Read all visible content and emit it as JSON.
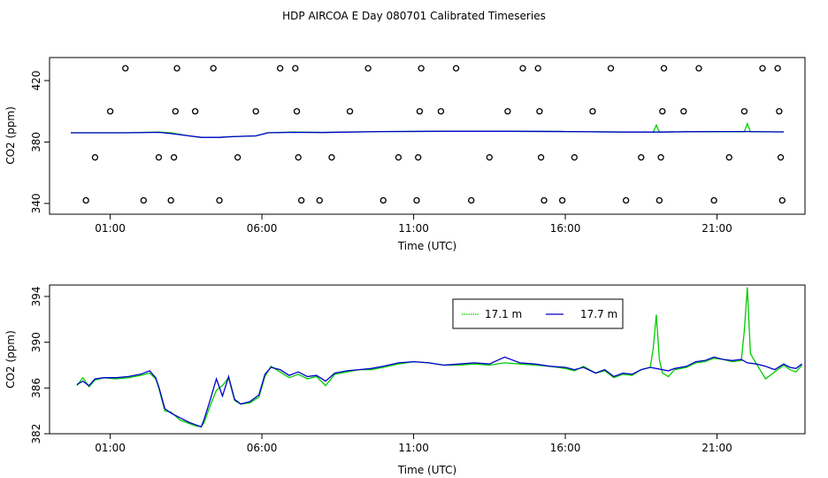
{
  "title": "HDP AIRCOA E  Day 080701  Calibrated Timeseries",
  "colors": {
    "green": "#00cc00",
    "blue": "#0000cc",
    "axis": "#000000"
  },
  "chart_data": [
    {
      "type": "scatter",
      "xlabel": "Time (UTC)",
      "ylabel": "CO2 (ppm)",
      "xlim": [
        -1.0,
        23.9
      ],
      "ylim": [
        333,
        435
      ],
      "x_ticks": [
        1,
        6,
        11,
        16,
        21
      ],
      "x_tick_labels": [
        "01:00",
        "06:00",
        "11:00",
        "16:00",
        "21:00"
      ],
      "y_ticks": [
        340,
        380,
        420
      ],
      "y_tick_labels": [
        "340",
        "380",
        "420"
      ],
      "points": [
        {
          "x": 0.2,
          "y": 342
        },
        {
          "x": 0.5,
          "y": 370
        },
        {
          "x": 1.0,
          "y": 400
        },
        {
          "x": 1.5,
          "y": 428
        },
        {
          "x": 2.1,
          "y": 342
        },
        {
          "x": 2.6,
          "y": 370
        },
        {
          "x": 3.0,
          "y": 342
        },
        {
          "x": 3.1,
          "y": 370
        },
        {
          "x": 3.15,
          "y": 400
        },
        {
          "x": 3.2,
          "y": 428
        },
        {
          "x": 3.8,
          "y": 400
        },
        {
          "x": 4.4,
          "y": 428
        },
        {
          "x": 4.6,
          "y": 342
        },
        {
          "x": 5.2,
          "y": 370
        },
        {
          "x": 5.8,
          "y": 400
        },
        {
          "x": 6.6,
          "y": 428
        },
        {
          "x": 7.1,
          "y": 428
        },
        {
          "x": 7.15,
          "y": 400
        },
        {
          "x": 7.2,
          "y": 370
        },
        {
          "x": 7.3,
          "y": 342
        },
        {
          "x": 7.9,
          "y": 342
        },
        {
          "x": 8.3,
          "y": 370
        },
        {
          "x": 8.9,
          "y": 400
        },
        {
          "x": 9.5,
          "y": 428
        },
        {
          "x": 10.0,
          "y": 342
        },
        {
          "x": 10.5,
          "y": 370
        },
        {
          "x": 11.1,
          "y": 342
        },
        {
          "x": 11.15,
          "y": 370
        },
        {
          "x": 11.2,
          "y": 400
        },
        {
          "x": 11.25,
          "y": 428
        },
        {
          "x": 11.9,
          "y": 400
        },
        {
          "x": 12.4,
          "y": 428
        },
        {
          "x": 12.9,
          "y": 342
        },
        {
          "x": 13.5,
          "y": 370
        },
        {
          "x": 14.1,
          "y": 400
        },
        {
          "x": 14.6,
          "y": 428
        },
        {
          "x": 15.1,
          "y": 428
        },
        {
          "x": 15.15,
          "y": 400
        },
        {
          "x": 15.2,
          "y": 370
        },
        {
          "x": 15.3,
          "y": 342
        },
        {
          "x": 15.9,
          "y": 342
        },
        {
          "x": 16.3,
          "y": 370
        },
        {
          "x": 16.9,
          "y": 400
        },
        {
          "x": 17.5,
          "y": 428
        },
        {
          "x": 18.0,
          "y": 342
        },
        {
          "x": 18.5,
          "y": 370
        },
        {
          "x": 19.1,
          "y": 342
        },
        {
          "x": 19.15,
          "y": 370
        },
        {
          "x": 19.2,
          "y": 400
        },
        {
          "x": 19.25,
          "y": 428
        },
        {
          "x": 19.9,
          "y": 400
        },
        {
          "x": 20.4,
          "y": 428
        },
        {
          "x": 20.9,
          "y": 342
        },
        {
          "x": 21.4,
          "y": 370
        },
        {
          "x": 21.9,
          "y": 400
        },
        {
          "x": 22.5,
          "y": 428
        },
        {
          "x": 23.0,
          "y": 428
        },
        {
          "x": 23.05,
          "y": 400
        },
        {
          "x": 23.1,
          "y": 370
        },
        {
          "x": 23.15,
          "y": 342
        }
      ],
      "series": [
        {
          "name": "17.1 m",
          "color": "#00cc00",
          "x": [
            -0.3,
            0.5,
            1.5,
            2.6,
            3.0,
            3.6,
            4.0,
            4.6,
            5.0,
            5.8,
            6.2,
            7.0,
            8.0,
            10.0,
            12.0,
            14.0,
            16.0,
            18.0,
            18.9,
            19.0,
            19.1,
            20.0,
            21.0,
            21.9,
            22.0,
            22.1,
            23.0,
            23.2
          ],
          "y": [
            386,
            386,
            386,
            386.5,
            386,
            384,
            383,
            383,
            383.5,
            384,
            386,
            386.5,
            386.3,
            386.8,
            387,
            387,
            386.8,
            386.5,
            386.5,
            391,
            386.5,
            386.7,
            386.7,
            386.7,
            392,
            386.7,
            386.6,
            386.6
          ]
        },
        {
          "name": "17.7 m",
          "color": "#0000cc",
          "x": [
            -0.3,
            0.5,
            1.5,
            2.6,
            3.0,
            3.6,
            4.0,
            4.6,
            5.0,
            5.8,
            6.2,
            7.0,
            8.0,
            10.0,
            12.0,
            14.0,
            16.0,
            18.0,
            19.0,
            20.0,
            21.0,
            22.0,
            23.0,
            23.2
          ],
          "y": [
            386,
            386,
            386,
            386.3,
            385.5,
            384,
            383,
            383,
            383.5,
            384,
            386,
            386.3,
            386.2,
            386.8,
            387,
            387,
            386.8,
            386.5,
            386.5,
            386.7,
            386.8,
            386.8,
            386.6,
            386.6
          ]
        }
      ]
    },
    {
      "type": "line",
      "xlabel": "Time (UTC)",
      "ylabel": "CO2 (ppm)",
      "xlim": [
        -1.0,
        23.9
      ],
      "ylim": [
        382,
        395
      ],
      "x_ticks": [
        1,
        6,
        11,
        16,
        21
      ],
      "x_tick_labels": [
        "01:00",
        "06:00",
        "11:00",
        "16:00",
        "21:00"
      ],
      "y_ticks": [
        382,
        386,
        390,
        394
      ],
      "y_tick_labels": [
        "382",
        "386",
        "390",
        "394"
      ],
      "legend": "top-center",
      "series": [
        {
          "name": "17.1 m",
          "color": "#00cc00",
          "x": [
            -0.1,
            0.1,
            0.3,
            0.5,
            0.8,
            1.2,
            1.6,
            2.0,
            2.3,
            2.5,
            2.6,
            2.8,
            3.0,
            3.3,
            3.6,
            3.8,
            4.0,
            4.1,
            4.3,
            4.5,
            4.7,
            4.9,
            5.1,
            5.3,
            5.6,
            5.9,
            6.1,
            6.3,
            6.6,
            6.9,
            7.2,
            7.5,
            7.8,
            8.1,
            8.4,
            8.8,
            9.2,
            9.6,
            10.0,
            10.5,
            11.0,
            11.5,
            12.0,
            12.5,
            13.0,
            13.5,
            14.0,
            14.5,
            15.0,
            15.5,
            16.0,
            16.3,
            16.6,
            17.0,
            17.3,
            17.6,
            17.9,
            18.2,
            18.5,
            18.8,
            18.9,
            19.0,
            19.1,
            19.2,
            19.4,
            19.6,
            19.8,
            20.0,
            20.3,
            20.6,
            20.9,
            21.2,
            21.5,
            21.8,
            21.9,
            22.0,
            22.1,
            22.3,
            22.6,
            22.9,
            23.2,
            23.4,
            23.6,
            23.8
          ],
          "y": [
            386.2,
            386.9,
            386.1,
            386.7,
            386.9,
            386.8,
            386.9,
            387.1,
            387.3,
            386.8,
            386.0,
            384.0,
            383.9,
            383.2,
            382.9,
            382.7,
            382.6,
            383.0,
            384.5,
            385.8,
            386.2,
            386.9,
            384.9,
            384.6,
            384.7,
            385.2,
            387.0,
            387.9,
            387.4,
            386.9,
            387.2,
            386.8,
            387.0,
            386.2,
            387.2,
            387.4,
            387.6,
            387.6,
            387.8,
            388.1,
            388.3,
            388.2,
            388.0,
            388.0,
            388.1,
            388.0,
            388.2,
            388.1,
            388.0,
            387.9,
            387.7,
            387.5,
            387.9,
            387.3,
            387.5,
            386.9,
            387.2,
            387.1,
            387.6,
            387.8,
            389.5,
            392.4,
            388.5,
            387.3,
            387.0,
            387.6,
            387.7,
            387.8,
            388.2,
            388.3,
            388.6,
            388.5,
            388.3,
            388.4,
            391.0,
            394.8,
            389.0,
            388.1,
            386.8,
            387.4,
            388.0,
            387.6,
            387.4,
            388.0
          ]
        },
        {
          "name": "17.7 m",
          "color": "#0000cc",
          "x": [
            -0.1,
            0.1,
            0.3,
            0.5,
            0.8,
            1.2,
            1.6,
            2.0,
            2.3,
            2.5,
            2.6,
            2.8,
            3.0,
            3.3,
            3.6,
            3.8,
            4.0,
            4.1,
            4.3,
            4.5,
            4.7,
            4.9,
            5.1,
            5.3,
            5.6,
            5.9,
            6.1,
            6.3,
            6.6,
            6.9,
            7.2,
            7.5,
            7.8,
            8.1,
            8.4,
            8.8,
            9.2,
            9.6,
            10.0,
            10.5,
            11.0,
            11.5,
            12.0,
            12.5,
            13.0,
            13.5,
            14.0,
            14.5,
            15.0,
            15.5,
            16.0,
            16.3,
            16.6,
            17.0,
            17.3,
            17.6,
            17.9,
            18.2,
            18.5,
            18.8,
            19.0,
            19.2,
            19.4,
            19.6,
            19.8,
            20.0,
            20.3,
            20.6,
            20.9,
            21.2,
            21.5,
            21.8,
            22.0,
            22.3,
            22.6,
            22.9,
            23.2,
            23.4,
            23.6,
            23.8
          ],
          "y": [
            386.3,
            386.6,
            386.2,
            386.8,
            386.9,
            386.9,
            387.0,
            387.2,
            387.5,
            386.9,
            386.1,
            384.2,
            383.8,
            383.4,
            383.0,
            382.8,
            382.6,
            383.3,
            385.0,
            386.8,
            385.3,
            387.0,
            385.0,
            384.6,
            384.8,
            385.4,
            387.2,
            387.8,
            387.6,
            387.1,
            387.4,
            387.0,
            387.1,
            386.6,
            387.3,
            387.5,
            387.6,
            387.7,
            387.9,
            388.2,
            388.3,
            388.2,
            388.0,
            388.1,
            388.2,
            388.1,
            388.7,
            388.2,
            388.1,
            387.9,
            387.8,
            387.6,
            387.8,
            387.3,
            387.6,
            387.0,
            387.3,
            387.2,
            387.6,
            387.8,
            387.7,
            387.6,
            387.5,
            387.7,
            387.8,
            387.9,
            388.3,
            388.4,
            388.7,
            388.5,
            388.4,
            388.5,
            388.2,
            388.1,
            387.9,
            387.6,
            388.1,
            387.8,
            387.7,
            388.1
          ]
        }
      ]
    }
  ]
}
